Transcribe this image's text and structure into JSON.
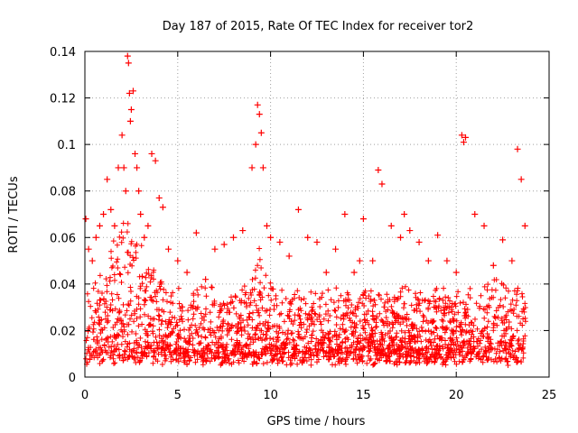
{
  "chart_data": {
    "type": "scatter",
    "title": "Day 187 of 2015, Rate Of TEC Index for receiver tor2",
    "xlabel": "GPS time / hours",
    "ylabel": "ROTI / TECUs",
    "xlim": [
      0,
      25
    ],
    "ylim": [
      0,
      0.14
    ],
    "xticks": [
      0,
      5,
      10,
      15,
      20,
      25
    ],
    "xtick_labels": [
      "0",
      "5",
      "10",
      "15",
      "20",
      "25"
    ],
    "yticks": [
      0,
      0.02,
      0.04,
      0.06,
      0.08,
      0.1,
      0.12,
      0.14
    ],
    "ytick_labels": [
      "0",
      "0.02",
      "0.04",
      "0.06",
      "0.08",
      "0.1",
      "0.12",
      "0.14"
    ],
    "grid": true,
    "marker": "+",
    "color": "#ff0000",
    "series": [
      {
        "x": [
          0.05,
          0.2,
          0.4,
          0.6,
          0.8,
          1.0,
          1.2,
          1.4,
          1.6,
          1.8,
          2.0,
          2.1,
          2.2,
          2.3,
          2.35,
          2.4,
          2.45,
          2.5,
          2.6,
          2.7,
          2.8,
          2.9,
          3.0,
          3.2,
          3.4,
          3.6,
          3.8,
          4.0,
          4.2,
          4.5,
          5.0,
          5.5,
          6.0,
          6.5,
          7.0,
          7.5,
          8.0,
          8.5,
          9.0,
          9.2,
          9.3,
          9.4,
          9.5,
          9.6,
          9.8,
          10.0,
          10.5,
          11.0,
          11.5,
          12.0,
          12.5,
          13.0,
          13.5,
          14.0,
          14.5,
          14.8,
          15.0,
          15.5,
          15.8,
          16.0,
          16.5,
          17.0,
          17.2,
          17.5,
          18.0,
          18.5,
          19.0,
          19.5,
          20.0,
          20.3,
          20.4,
          20.5,
          21.0,
          21.5,
          22.0,
          22.5,
          23.0,
          23.3,
          23.5,
          23.7
        ],
        "y": [
          0.068,
          0.055,
          0.05,
          0.06,
          0.065,
          0.07,
          0.085,
          0.072,
          0.065,
          0.09,
          0.104,
          0.09,
          0.08,
          0.138,
          0.135,
          0.122,
          0.11,
          0.115,
          0.123,
          0.096,
          0.09,
          0.08,
          0.07,
          0.06,
          0.065,
          0.096,
          0.093,
          0.077,
          0.073,
          0.055,
          0.05,
          0.045,
          0.062,
          0.042,
          0.055,
          0.057,
          0.06,
          0.063,
          0.09,
          0.1,
          0.117,
          0.113,
          0.105,
          0.09,
          0.065,
          0.06,
          0.058,
          0.052,
          0.072,
          0.06,
          0.058,
          0.045,
          0.055,
          0.07,
          0.045,
          0.05,
          0.068,
          0.05,
          0.089,
          0.083,
          0.065,
          0.06,
          0.07,
          0.063,
          0.058,
          0.05,
          0.061,
          0.05,
          0.045,
          0.104,
          0.101,
          0.103,
          0.07,
          0.065,
          0.048,
          0.059,
          0.05,
          0.098,
          0.085,
          0.065
        ]
      }
    ]
  }
}
